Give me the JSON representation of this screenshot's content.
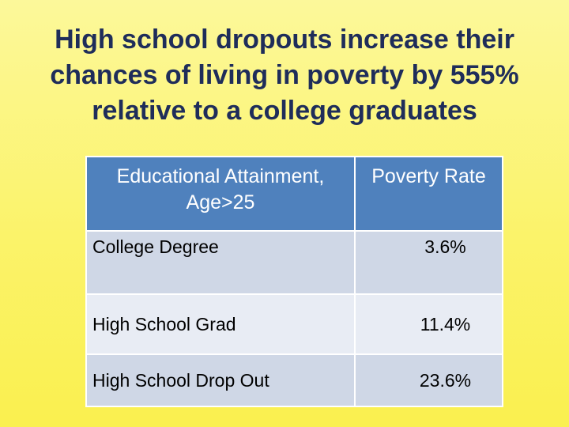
{
  "title": {
    "line1": "High school dropouts increase their",
    "line2": "chances of living in poverty by 555%",
    "line3": "relative to a college graduates"
  },
  "table": {
    "headers": [
      "Educational Attainment, Age>25",
      "Poverty Rate"
    ],
    "rows": [
      {
        "label": "College Degree",
        "value": "3.6%"
      },
      {
        "label": "High School Grad",
        "value": "11.4%"
      },
      {
        "label": "High School Drop Out",
        "value": "23.6%"
      }
    ]
  }
}
